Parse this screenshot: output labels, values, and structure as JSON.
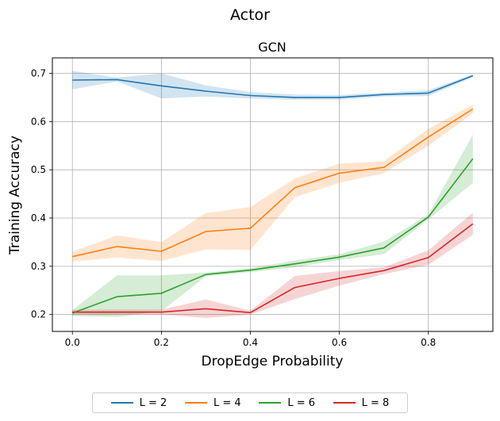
{
  "figure": {
    "suptitle": "Actor"
  },
  "chart_data": {
    "type": "line",
    "title": "GCN",
    "xlabel": "DropEdge Probability",
    "ylabel": "Training Accuracy",
    "x": [
      0.0,
      0.1,
      0.2,
      0.3,
      0.4,
      0.5,
      0.6,
      0.7,
      0.8,
      0.9
    ],
    "xlim": [
      -0.045,
      0.945
    ],
    "ylim": [
      0.165,
      0.732
    ],
    "xticks": [
      0.0,
      0.2,
      0.4,
      0.6,
      0.8
    ],
    "xtick_labels": [
      "0.0",
      "0.2",
      "0.4",
      "0.6",
      "0.8"
    ],
    "yticks": [
      0.2,
      0.3,
      0.4,
      0.5,
      0.6,
      0.7
    ],
    "ytick_labels": [
      "0.2",
      "0.3",
      "0.4",
      "0.5",
      "0.6",
      "0.7"
    ],
    "grid": true,
    "legend_position": "bottom-center, below plot",
    "series": [
      {
        "name": "L = 2",
        "color": "#1f77b4",
        "values": [
          0.686,
          0.687,
          0.674,
          0.663,
          0.654,
          0.65,
          0.65,
          0.656,
          0.659,
          0.695
        ],
        "lower": [
          0.667,
          0.683,
          0.648,
          0.652,
          0.648,
          0.645,
          0.645,
          0.652,
          0.653,
          0.692
        ],
        "upper": [
          0.705,
          0.691,
          0.7,
          0.675,
          0.661,
          0.656,
          0.655,
          0.66,
          0.665,
          0.698
        ]
      },
      {
        "name": "L = 4",
        "color": "#ff7f0e",
        "values": [
          0.32,
          0.341,
          0.331,
          0.372,
          0.379,
          0.463,
          0.493,
          0.505,
          0.568,
          0.626
        ],
        "lower": [
          0.31,
          0.318,
          0.311,
          0.335,
          0.334,
          0.443,
          0.473,
          0.493,
          0.55,
          0.617
        ],
        "upper": [
          0.33,
          0.364,
          0.35,
          0.41,
          0.423,
          0.482,
          0.513,
          0.518,
          0.585,
          0.635
        ]
      },
      {
        "name": "L = 6",
        "color": "#2ca02c",
        "values": [
          0.203,
          0.237,
          0.244,
          0.283,
          0.292,
          0.305,
          0.319,
          0.338,
          0.402,
          0.523
        ],
        "lower": [
          0.197,
          0.195,
          0.207,
          0.279,
          0.288,
          0.298,
          0.313,
          0.325,
          0.397,
          0.473
        ],
        "upper": [
          0.209,
          0.281,
          0.281,
          0.287,
          0.296,
          0.312,
          0.325,
          0.351,
          0.407,
          0.573
        ]
      },
      {
        "name": "L = 8",
        "color": "#d62728",
        "values": [
          0.205,
          0.205,
          0.205,
          0.212,
          0.204,
          0.256,
          0.275,
          0.291,
          0.318,
          0.388
        ],
        "lower": [
          0.2,
          0.2,
          0.2,
          0.193,
          0.2,
          0.232,
          0.26,
          0.284,
          0.303,
          0.365
        ],
        "upper": [
          0.21,
          0.21,
          0.21,
          0.231,
          0.208,
          0.28,
          0.29,
          0.298,
          0.333,
          0.411
        ]
      }
    ]
  }
}
